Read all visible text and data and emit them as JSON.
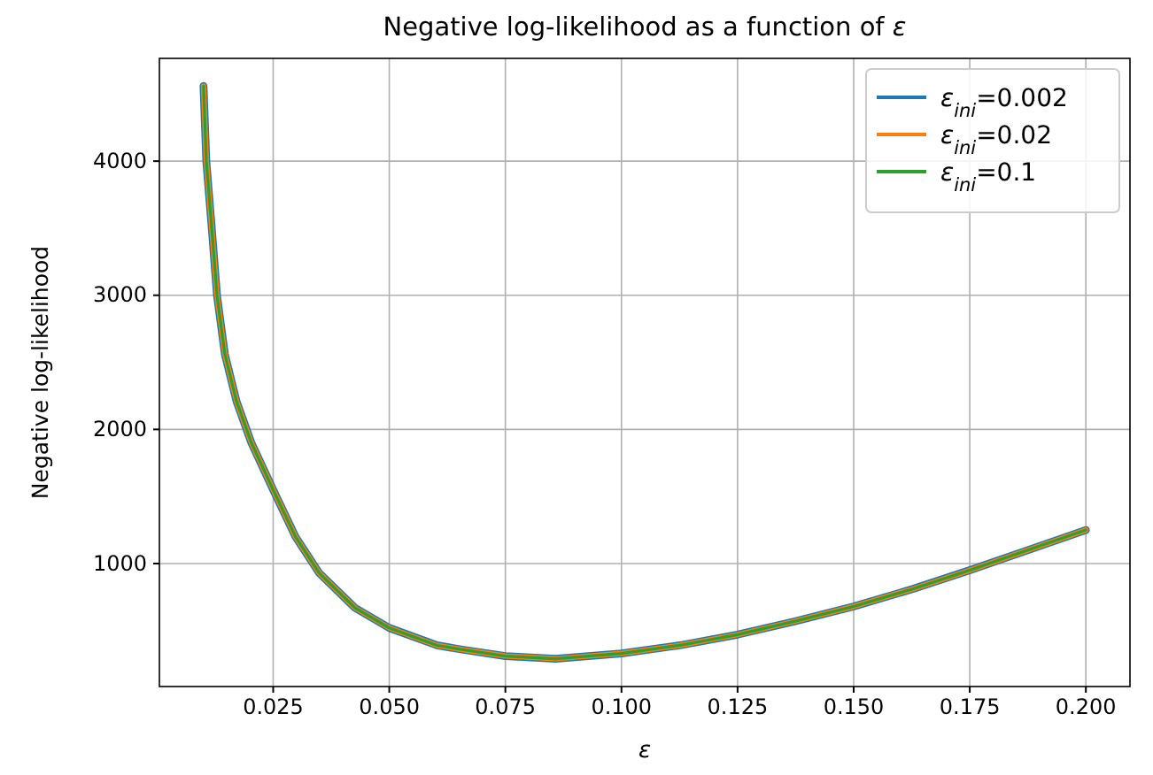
{
  "chart_data": {
    "type": "line",
    "title": "Negative log-likelihood as a function of ε",
    "xlabel": "ε",
    "ylabel": "Negative log-likelihood",
    "x": [
      0.01,
      0.0106,
      0.0118,
      0.0129,
      0.0146,
      0.0171,
      0.0203,
      0.025,
      0.0298,
      0.0349,
      0.0426,
      0.05,
      0.0603,
      0.0654,
      0.075,
      0.0858,
      0.1,
      0.1125,
      0.125,
      0.1374,
      0.15,
      0.1627,
      0.175,
      0.1875,
      0.2
    ],
    "series": [
      {
        "name": "ε$_{ini}$=0.002",
        "color": "#1f77b4",
        "values": [
          4560,
          4000,
          3490,
          3000,
          2560,
          2210,
          1900,
          1550,
          1200,
          930,
          670,
          520,
          390,
          360,
          310,
          290,
          330,
          390,
          470,
          570,
          680,
          810,
          950,
          1100,
          1250
        ]
      },
      {
        "name": "ε$_{ini}$=0.02",
        "color": "#ff7f0e",
        "values": [
          4560,
          4000,
          3490,
          3000,
          2560,
          2210,
          1900,
          1550,
          1200,
          930,
          670,
          520,
          390,
          360,
          310,
          290,
          330,
          390,
          470,
          570,
          680,
          810,
          950,
          1100,
          1250
        ]
      },
      {
        "name": "ε$_{ini}$=0.1",
        "color": "#2ca02c",
        "values": [
          4560,
          4000,
          3490,
          3000,
          2560,
          2210,
          1900,
          1550,
          1200,
          930,
          670,
          520,
          390,
          360,
          310,
          290,
          330,
          390,
          470,
          570,
          680,
          810,
          950,
          1100,
          1250
        ]
      }
    ],
    "xlim": [
      0.0005,
      0.2095
    ],
    "xticks": [
      {
        "value": 0.025,
        "label": "0.025"
      },
      {
        "value": 0.05,
        "label": "0.050"
      },
      {
        "value": 0.075,
        "label": "0.075"
      },
      {
        "value": 0.1,
        "label": "0.100"
      },
      {
        "value": 0.125,
        "label": "0.125"
      },
      {
        "value": 0.15,
        "label": "0.150"
      },
      {
        "value": 0.175,
        "label": "0.175"
      },
      {
        "value": 0.2,
        "label": "0.200"
      }
    ],
    "ylim": [
      83,
      4766
    ],
    "yticks": [
      1000,
      2000,
      3000,
      4000
    ],
    "grid": true,
    "legend": "top right",
    "marker": "none",
    "line_style": "solid"
  }
}
